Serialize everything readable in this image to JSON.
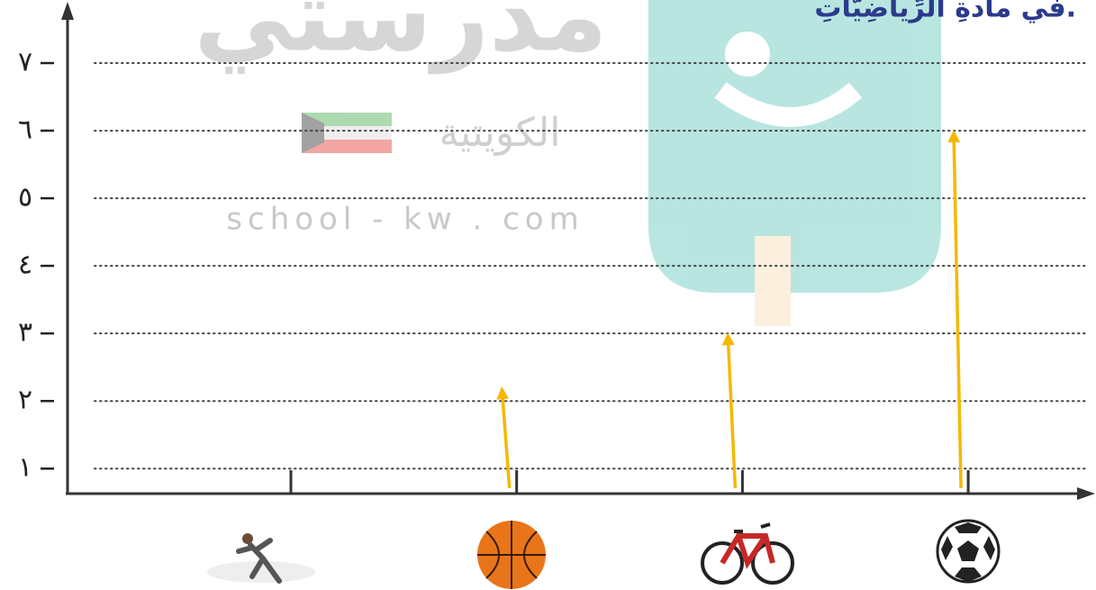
{
  "chart_data": {
    "type": "bar",
    "title": "في مادةِ الرِّياضِيَّاتِ.",
    "watermark": [
      "مدرستي",
      "الكويتية",
      "school - kw . com"
    ],
    "categories": [
      null,
      null,
      null,
      null
    ],
    "values": [
      null,
      2.2,
      3,
      6
    ],
    "color": "#f5b800",
    "ylim": [
      0.63,
      7.8
    ],
    "yticks": [
      {
        "value": 1,
        "label": "١"
      },
      {
        "value": 2,
        "label": "٢"
      },
      {
        "value": 3,
        "label": "٣"
      },
      {
        "value": 4,
        "label": "٤"
      },
      {
        "value": 5,
        "label": "٥"
      },
      {
        "value": 6,
        "label": "٦"
      },
      {
        "value": 7,
        "label": "٧"
      }
    ],
    "grid": true
  }
}
